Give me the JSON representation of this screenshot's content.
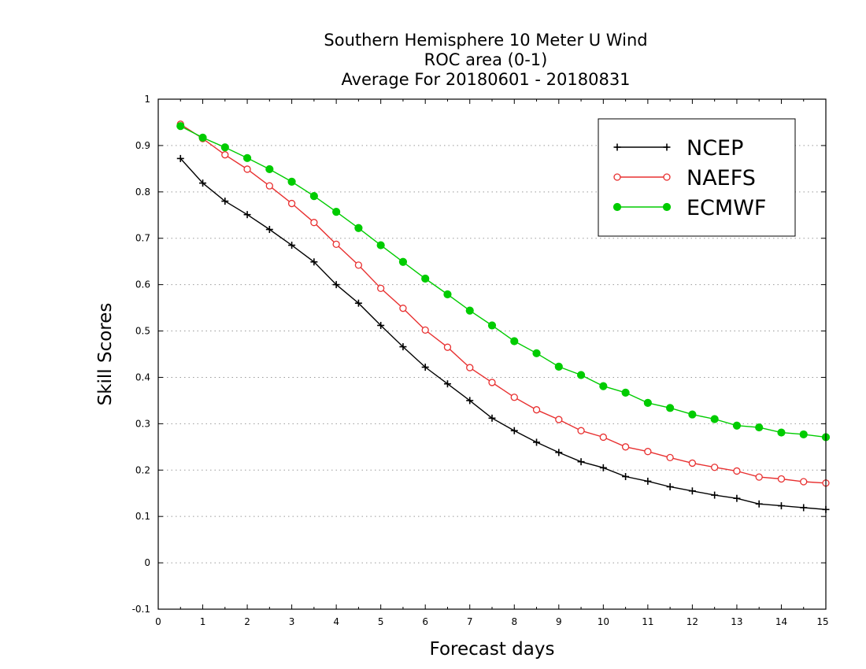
{
  "chart_data": {
    "type": "line",
    "title": [
      "Southern Hemisphere 10 Meter U Wind",
      "ROC area (0-1)",
      "Average For 20180601 - 20180831"
    ],
    "xlabel": "Forecast days",
    "ylabel": "Skill Scores",
    "xlim": [
      0,
      15
    ],
    "ylim": [
      -0.1,
      1
    ],
    "xticks": [
      "0",
      "1",
      "2",
      "3",
      "4",
      "5",
      "6",
      "7",
      "8",
      "9",
      "10",
      "11",
      "12",
      "13",
      "14",
      "15"
    ],
    "yticks": [
      "-0.1",
      "0",
      "0.1",
      "0.2",
      "0.3",
      "0.4",
      "0.5",
      "0.6",
      "0.7",
      "0.8",
      "0.9",
      "1"
    ],
    "grid": "horizontal dotted",
    "legend_position": "top-right",
    "x": [
      0.5,
      1,
      1.5,
      2,
      2.5,
      3,
      3.5,
      4,
      4.5,
      5,
      5.5,
      6,
      6.5,
      7,
      7.5,
      8,
      8.5,
      9,
      9.5,
      10,
      10.5,
      11,
      11.5,
      12,
      12.5,
      13,
      13.5,
      14,
      14.5,
      15
    ],
    "series": [
      {
        "name": "NCEP",
        "color": "#000000",
        "marker": "plus",
        "values": [
          0.872,
          0.819,
          0.78,
          0.751,
          0.719,
          0.685,
          0.649,
          0.6,
          0.56,
          0.512,
          0.466,
          0.422,
          0.386,
          0.35,
          0.312,
          0.285,
          0.26,
          0.238,
          0.218,
          0.205,
          0.186,
          0.176,
          0.164,
          0.155,
          0.146,
          0.139,
          0.127,
          0.123,
          0.119,
          0.115
        ]
      },
      {
        "name": "NAEFS",
        "color": "#e83030",
        "marker": "open-circle",
        "values": [
          0.946,
          0.915,
          0.88,
          0.849,
          0.813,
          0.775,
          0.734,
          0.687,
          0.642,
          0.592,
          0.549,
          0.502,
          0.465,
          0.421,
          0.389,
          0.357,
          0.33,
          0.309,
          0.285,
          0.271,
          0.25,
          0.24,
          0.227,
          0.215,
          0.206,
          0.198,
          0.185,
          0.181,
          0.175,
          0.172
        ]
      },
      {
        "name": "ECMWF",
        "color": "#00cc00",
        "marker": "filled-circle",
        "values": [
          0.942,
          0.917,
          0.896,
          0.873,
          0.849,
          0.822,
          0.791,
          0.757,
          0.722,
          0.685,
          0.649,
          0.613,
          0.579,
          0.544,
          0.512,
          0.478,
          0.452,
          0.423,
          0.405,
          0.381,
          0.367,
          0.345,
          0.334,
          0.32,
          0.31,
          0.296,
          0.292,
          0.281,
          0.277,
          0.271
        ]
      }
    ]
  }
}
